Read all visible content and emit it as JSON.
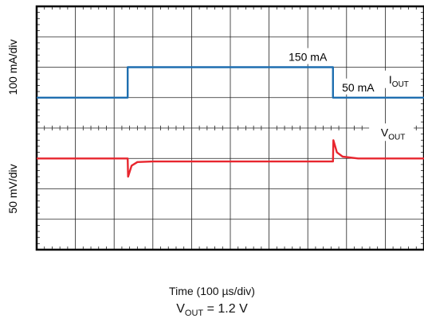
{
  "chart_data": {
    "type": "line",
    "xlabel": "Time (100 µs/div)",
    "caption": {
      "main": "V",
      "sub": "OUT",
      "rest": " = 1.2 V"
    },
    "grid": true,
    "divisions": {
      "x": 10,
      "y": 8
    },
    "panels": [
      {
        "ylabel": "100 mA/div",
        "series": [
          {
            "name": "I",
            "name_sub": "OUT",
            "color": "#1f6fb0",
            "unit": "mA",
            "x": [
              0,
              2.35,
              2.35,
              7.65,
              7.65,
              10
            ],
            "y": [
              50,
              50,
              150,
              150,
              50,
              50
            ],
            "annotations": [
              {
                "text": "150 mA",
                "x": 7.0,
                "y": 150
              },
              {
                "text": "50 mA",
                "x": 8.3,
                "y": 50
              }
            ]
          }
        ]
      },
      {
        "ylabel": "50 mV/div",
        "series": [
          {
            "name": "V",
            "name_sub": "OUT",
            "color": "#e8262e",
            "unit": "mV (AC coupled)",
            "x": [
              0,
              2.35,
              2.36,
              2.45,
              2.6,
              3.0,
              7.65,
              7.66,
              7.75,
              7.9,
              8.3,
              10
            ],
            "y": [
              0,
              0,
              -30,
              -12,
              -6,
              -5,
              -5,
              30,
              10,
              3,
              0,
              0
            ]
          }
        ]
      }
    ]
  }
}
